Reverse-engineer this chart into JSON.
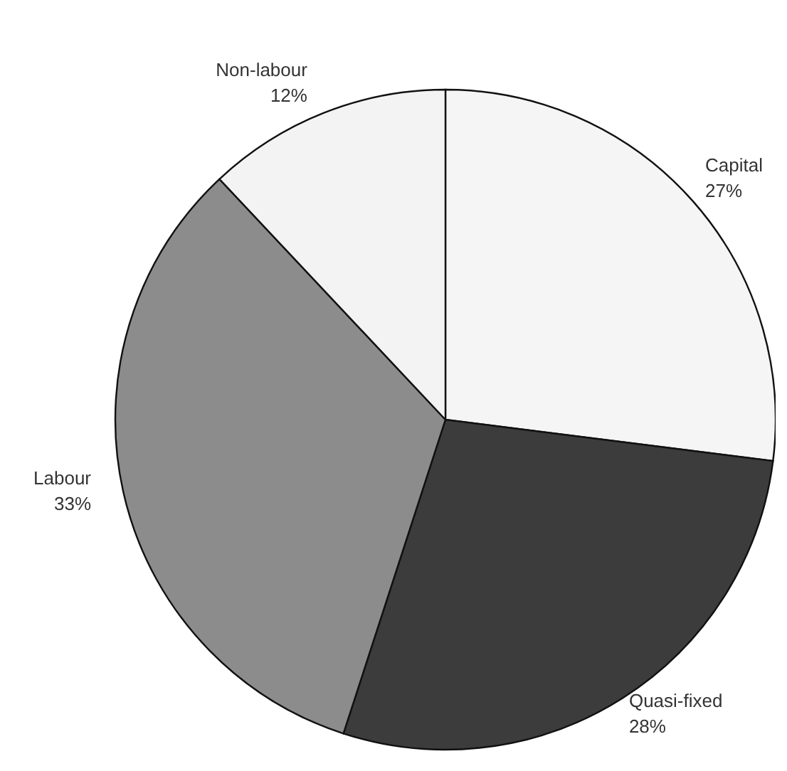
{
  "chart_data": {
    "type": "pie",
    "categories": [
      "Capital",
      "Quasi-fixed",
      "Labour",
      "Non-labour"
    ],
    "values": [
      27,
      28,
      33,
      12
    ],
    "colors": [
      "#f5f5f5",
      "#3c3c3c",
      "#8c8c8c",
      "#f3f3f3"
    ],
    "value_labels": [
      "27%",
      "28%",
      "33%",
      "12%"
    ]
  }
}
